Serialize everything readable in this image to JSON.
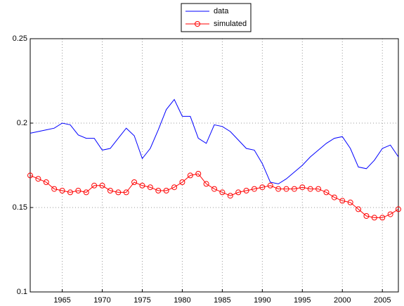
{
  "chart_data": {
    "type": "line",
    "x": [
      1961,
      1962,
      1963,
      1964,
      1965,
      1966,
      1967,
      1968,
      1969,
      1970,
      1971,
      1972,
      1973,
      1974,
      1975,
      1976,
      1977,
      1978,
      1979,
      1980,
      1981,
      1982,
      1983,
      1984,
      1985,
      1986,
      1987,
      1988,
      1989,
      1990,
      1991,
      1992,
      1993,
      1994,
      1995,
      1996,
      1997,
      1998,
      1999,
      2000,
      2001,
      2002,
      2003,
      2004,
      2005,
      2006,
      2007
    ],
    "series": [
      {
        "name": "data",
        "color": "#0000ff",
        "marker": "none",
        "values": [
          0.194,
          0.195,
          0.196,
          0.197,
          0.2,
          0.199,
          0.193,
          0.191,
          0.191,
          0.184,
          0.185,
          0.191,
          0.197,
          0.1925,
          0.179,
          0.185,
          0.196,
          0.208,
          0.214,
          0.204,
          0.204,
          0.191,
          0.188,
          0.199,
          0.198,
          0.195,
          0.19,
          0.185,
          0.184,
          0.176,
          0.165,
          0.164,
          0.167,
          0.171,
          0.175,
          0.18,
          0.184,
          0.188,
          0.191,
          0.192,
          0.185,
          0.174,
          0.173,
          0.178,
          0.185,
          0.187,
          0.18
        ]
      },
      {
        "name": "simulated",
        "color": "#ff0000",
        "marker": "circle",
        "values": [
          0.169,
          0.167,
          0.165,
          0.161,
          0.16,
          0.159,
          0.16,
          0.159,
          0.163,
          0.163,
          0.16,
          0.159,
          0.159,
          0.165,
          0.163,
          0.162,
          0.16,
          0.16,
          0.162,
          0.165,
          0.169,
          0.17,
          0.164,
          0.161,
          0.159,
          0.157,
          0.159,
          0.16,
          0.161,
          0.162,
          0.163,
          0.161,
          0.161,
          0.161,
          0.162,
          0.161,
          0.161,
          0.159,
          0.156,
          0.154,
          0.153,
          0.149,
          0.145,
          0.144,
          0.144,
          0.146,
          0.149
        ]
      }
    ],
    "xlim": [
      1961,
      2007
    ],
    "xticks": [
      1965,
      1970,
      1975,
      1980,
      1985,
      1990,
      1995,
      2000,
      2005
    ],
    "ylim": [
      0.1,
      0.25
    ],
    "yticks": [
      0.1,
      0.15,
      0.2,
      0.25
    ],
    "grid": true,
    "legend": "top"
  }
}
